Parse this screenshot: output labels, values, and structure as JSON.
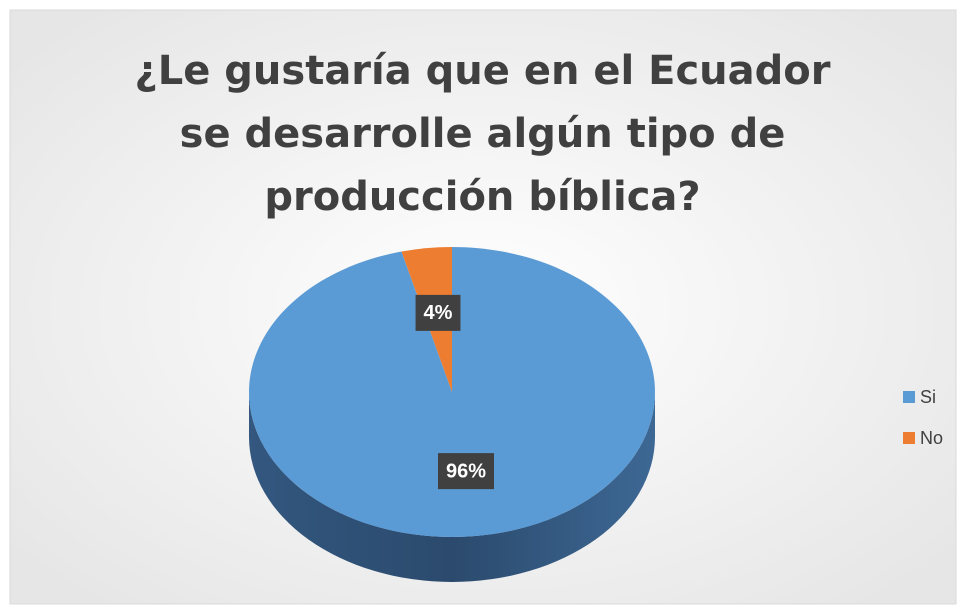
{
  "chart_data": {
    "type": "pie",
    "title": "¿Le gustaría que en el Ecuador se desarrolle algún tipo de producción bíblica?",
    "categories": [
      "Si",
      "No"
    ],
    "values": [
      96,
      4
    ],
    "value_labels": [
      "96%",
      "4%"
    ],
    "colors": [
      "#5b9bd5",
      "#ed7d31"
    ],
    "legend": "right"
  }
}
